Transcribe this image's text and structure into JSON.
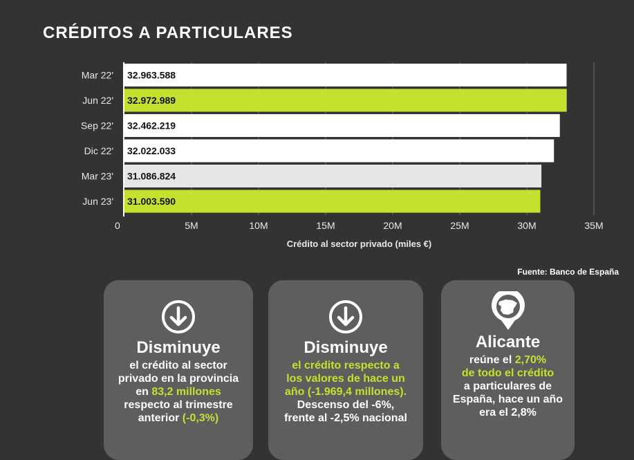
{
  "page": {
    "title": "CRÉDITOS A PARTICULARES",
    "source": "Fuente: Banco de España"
  },
  "chart_data": {
    "type": "bar",
    "orientation": "horizontal",
    "categories": [
      "Mar 22'",
      "Jun 22'",
      "Sep 22'",
      "Dic 22'",
      "Mar 23'",
      "Jun 23'"
    ],
    "values": [
      32963588,
      32972989,
      32462219,
      32022033,
      31086824,
      31003590
    ],
    "value_labels": [
      "32.963.588",
      "32.972.989",
      "32.462.219",
      "32.022.033",
      "31.086.824",
      "31.003.590"
    ],
    "bar_colors": [
      "#ffffff",
      "#c5e02e",
      "#ffffff",
      "#ffffff",
      "#e6e6e6",
      "#c5e02e"
    ],
    "xlabel": "Crédito al sector privado (miles €)",
    "ylabel": "",
    "xlim": [
      0,
      35000000
    ],
    "xticks": [
      0,
      5000000,
      10000000,
      15000000,
      20000000,
      25000000,
      30000000,
      35000000
    ],
    "xtick_labels": [
      "0",
      "5M",
      "10M",
      "15M",
      "20M",
      "25M",
      "30M",
      "35M"
    ],
    "grid": true,
    "legend": "none"
  },
  "cards": [
    {
      "icon": "arrow-down-circle-icon",
      "heading": "Disminuye",
      "lines": [
        [
          {
            "t": "el crédito al sector",
            "g": false
          }
        ],
        [
          {
            "t": "privado en la provincia",
            "g": false
          }
        ],
        [
          {
            "t": "en ",
            "g": false
          },
          {
            "t": " 83,2 millones",
            "g": true
          }
        ],
        [
          {
            "t": "respecto al trimestre",
            "g": false
          }
        ],
        [
          {
            "t": "anterior ",
            "g": false
          },
          {
            "t": "(-0,3%)",
            "g": true
          }
        ]
      ]
    },
    {
      "icon": "arrow-down-circle-icon",
      "heading": "Disminuye",
      "lines": [
        [
          {
            "t": "el crédito respecto a",
            "g": true
          }
        ],
        [
          {
            "t": "los valores de hace un",
            "g": true
          }
        ],
        [
          {
            "t": "año (-1.969,4 millones).",
            "g": true
          }
        ],
        [
          {
            "t": "Descenso del -6%,",
            "g": false
          }
        ],
        [
          {
            "t": "frente al -2,5% nacional",
            "g": false
          }
        ]
      ]
    },
    {
      "icon": "spain-map-pin-icon",
      "heading": "Alicante",
      "lines": [
        [
          {
            "t": "reúne el ",
            "g": false
          },
          {
            "t": "2,70%",
            "g": true
          }
        ],
        [
          {
            "t": "de todo el crédito",
            "g": true
          }
        ],
        [
          {
            "t": "a particulares de",
            "g": false
          }
        ],
        [
          {
            "t": "España, hace un año",
            "g": false
          }
        ],
        [
          {
            "t": "era el 2,8%",
            "g": false
          }
        ]
      ]
    }
  ],
  "colors": {
    "background": "#333333",
    "accent_green": "#c5e02e",
    "card": "#5e5e5e",
    "grid": "#5a5a5a"
  }
}
